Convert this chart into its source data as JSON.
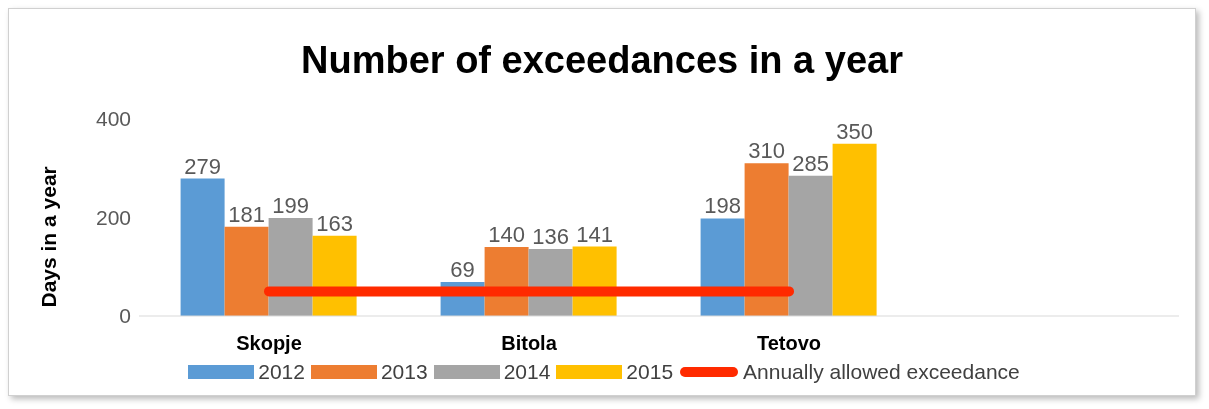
{
  "chart_data": {
    "type": "bar",
    "title": "Number of exceedances in a year",
    "ylabel": "Days in a year",
    "categories": [
      "Skopje",
      "Bitola",
      "Tetovo",
      null
    ],
    "series": [
      {
        "name": "2012",
        "color": "#5b9bd5",
        "values": [
          279,
          69,
          198,
          null
        ],
        "value_labels": [
          "279",
          "69",
          "198",
          null
        ]
      },
      {
        "name": "2013",
        "color": "#ed7d31",
        "values": [
          181,
          140,
          310,
          null
        ],
        "value_labels": [
          "181",
          "140",
          "310",
          null
        ]
      },
      {
        "name": "2014",
        "color": "#a5a5a5",
        "values": [
          199,
          136,
          285,
          null
        ],
        "value_labels": [
          "199",
          "136",
          "285",
          null
        ]
      },
      {
        "name": "2015",
        "color": "#ffc000",
        "values": [
          163,
          141,
          350,
          null
        ],
        "value_labels": [
          "163",
          "141",
          "350",
          null
        ]
      },
      {
        "name": "Annually allowed exceedance",
        "type": "line",
        "color": "#ff2a00",
        "values": [
          50,
          50,
          50,
          null
        ]
      }
    ],
    "ylim": [
      0,
      400
    ],
    "yticks": [
      0,
      200,
      400
    ],
    "grid": false,
    "legend": "bottom",
    "marker": "none"
  }
}
